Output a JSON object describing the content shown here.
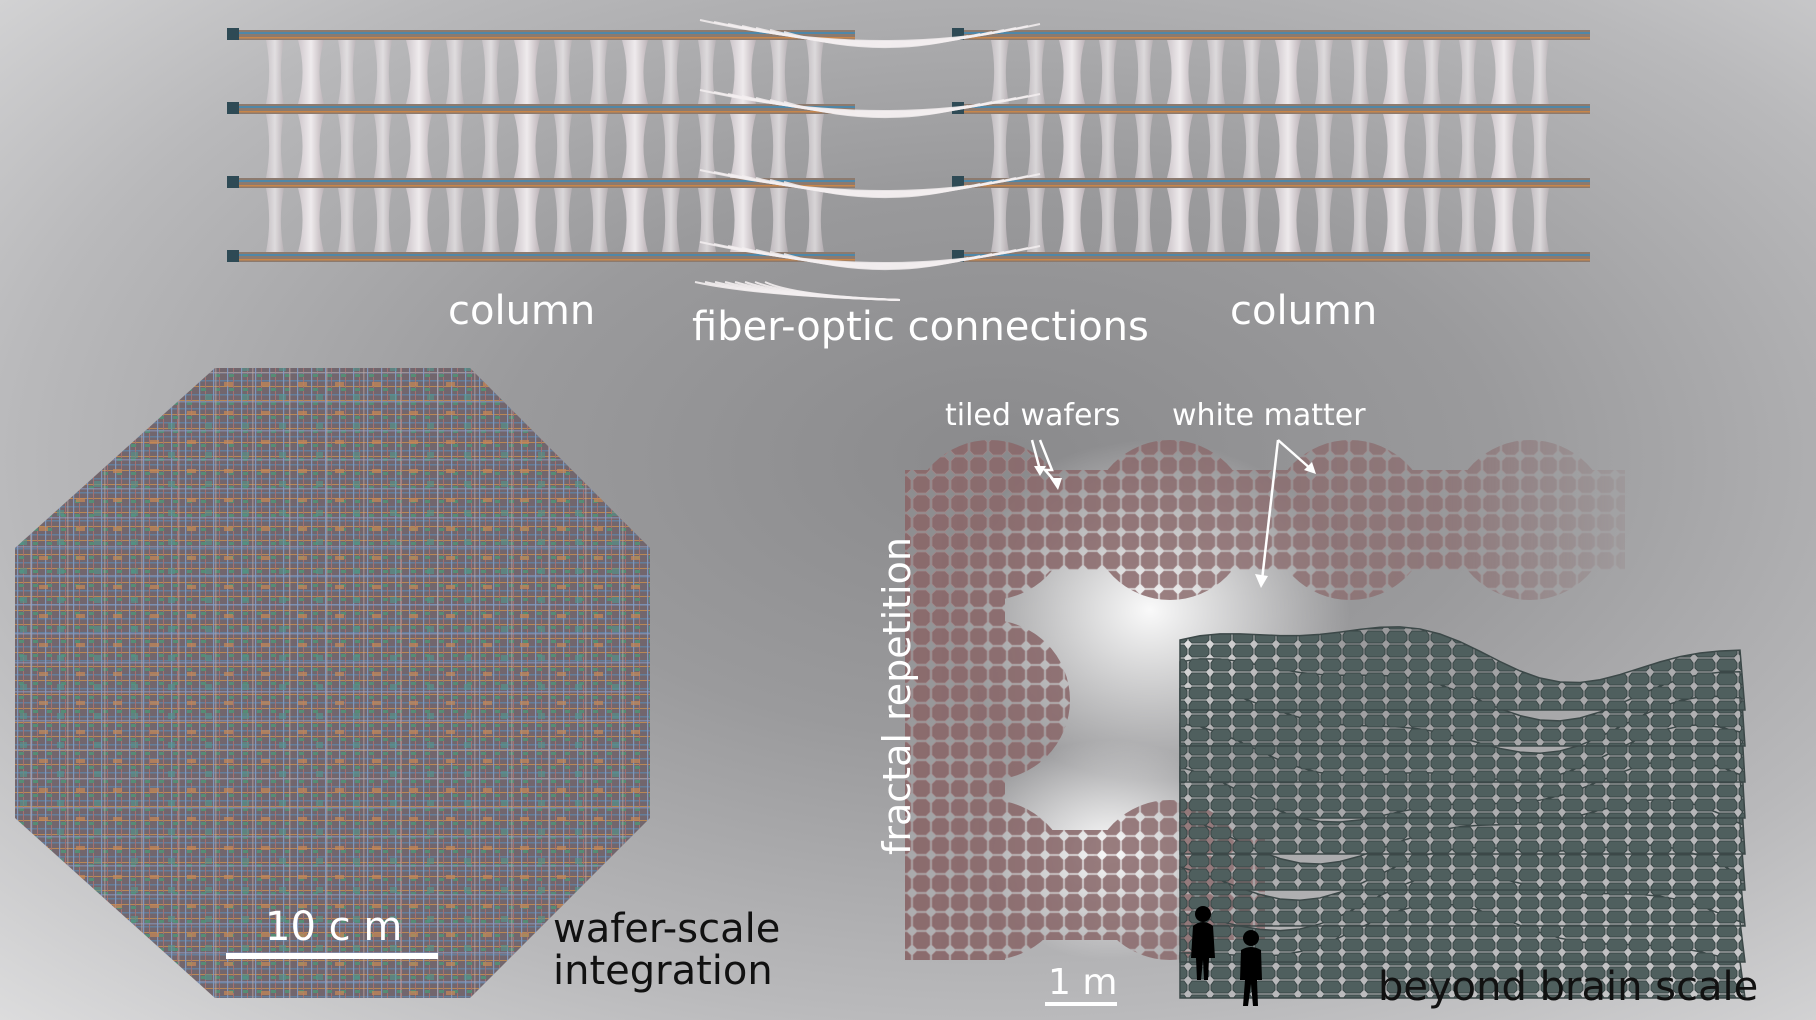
{
  "labels": {
    "column_left": "column",
    "fiber": "fiber-optic connections",
    "column_right": "column",
    "tiled_wafers": "tiled wafers",
    "white_matter": "white matter",
    "fractal": "fractal repetition",
    "scale_wafer": "10 c m",
    "wafer_scale_1": "wafer-scale",
    "wafer_scale_2": "integration",
    "scale_m": "1 m",
    "beyond": "beyond brain scale"
  },
  "colors": {
    "wafer_base": "#7a6a6a",
    "tile_pink": "#8a6a6c",
    "tile_green": "#4f5f5e",
    "label_white": "#ffffff",
    "label_dark": "#111111"
  },
  "icons": [
    "human-silhouette-icon",
    "arrow-icon"
  ]
}
